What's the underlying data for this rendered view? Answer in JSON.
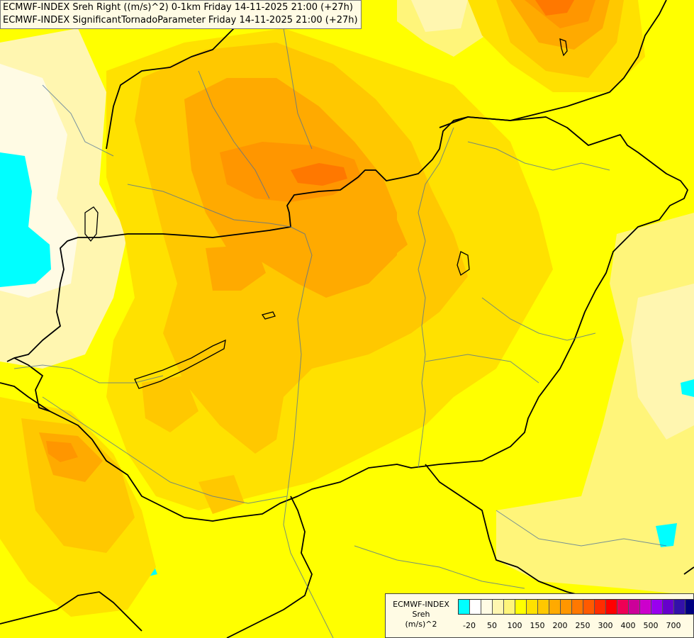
{
  "header": {
    "line1": "ECMWF-INDEX Sreh Right ((m/s)^2) 0-1km Friday 14-11-2025 21:00 (+27h)",
    "line2": "ECMWF-INDEX SignificantTornadoParameter Friday 14-11-2025 21:00 (+27h)"
  },
  "legend": {
    "title": "ECMWF-INDEX",
    "variable": "Sreh",
    "unit": "(m/s)^2",
    "colors": [
      "#00ffff",
      "#ffffff",
      "#fffbe4",
      "#fff6b0",
      "#fff57a",
      "#ffff00",
      "#ffe100",
      "#ffc800",
      "#ffaa00",
      "#ff9600",
      "#ff7800",
      "#ff5a00",
      "#ff2d00",
      "#ff0000",
      "#ee0055",
      "#cc0099",
      "#cc00cc",
      "#9900ee",
      "#6600cc",
      "#3311aa",
      "#000080"
    ],
    "ticks": [
      "-20",
      "50",
      "100",
      "150",
      "200",
      "250",
      "300",
      "400",
      "500",
      "700"
    ]
  }
}
